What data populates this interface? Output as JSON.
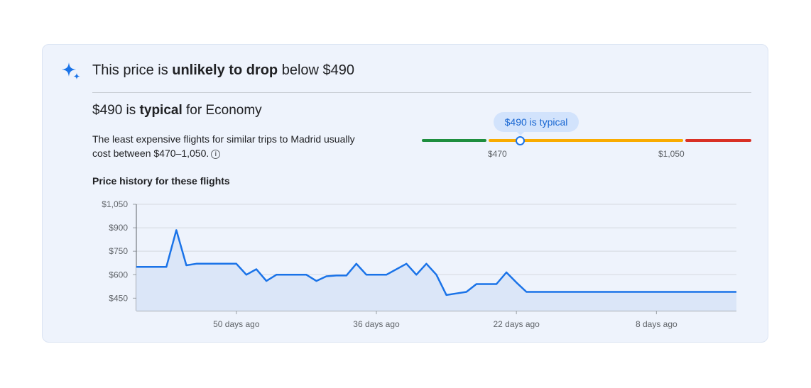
{
  "insight": {
    "headline_pre": "This price is ",
    "headline_bold": "unlikely to drop",
    "headline_post": " below $490",
    "icon": "sparkle-icon"
  },
  "typical": {
    "pre": "$490 is ",
    "bold": "typical",
    "post": " for Economy",
    "description": "The least expensive flights for similar trips to Madrid usually cost between $470–1,050.",
    "info_icon": "info-icon"
  },
  "range": {
    "badge": "$490 is typical",
    "low_label": "$470",
    "high_label": "$1,050",
    "low": 470,
    "high": 1050,
    "current": 490,
    "colors": {
      "low": "#1e8e3e",
      "typical": "#f9ab00",
      "high": "#d93025"
    }
  },
  "chart_data": {
    "type": "area",
    "title": "Price history for these flights",
    "xlabel": "",
    "ylabel": "",
    "y_ticks": [
      "$1,050",
      "$900",
      "$750",
      "$600",
      "$450"
    ],
    "y_tick_values": [
      1050,
      900,
      750,
      600,
      450
    ],
    "ylim": [
      370,
      1050
    ],
    "x_ticks": [
      "50 days ago",
      "36 days ago",
      "22 days ago",
      "8 days ago"
    ],
    "x_tick_values": [
      50,
      36,
      22,
      8
    ],
    "xlim": [
      60,
      0
    ],
    "grid": true,
    "line_color": "#1a73e8",
    "fill_color": "#dbe6f8",
    "series": [
      {
        "x": [
          60,
          57,
          56,
          55,
          54,
          53,
          50,
          49,
          48,
          47,
          46,
          45,
          43,
          42,
          41,
          40,
          39,
          38,
          37,
          36,
          35,
          33,
          32,
          31,
          30,
          29,
          28,
          27,
          26,
          25,
          24,
          23,
          22,
          21,
          20,
          19,
          18,
          0
        ],
        "y": [
          650,
          650,
          885,
          660,
          670,
          670,
          670,
          600,
          635,
          560,
          600,
          600,
          600,
          560,
          590,
          595,
          595,
          670,
          600,
          600,
          600,
          670,
          600,
          670,
          600,
          470,
          480,
          490,
          540,
          540,
          540,
          615,
          550,
          490,
          490,
          490,
          490,
          490
        ]
      }
    ]
  }
}
